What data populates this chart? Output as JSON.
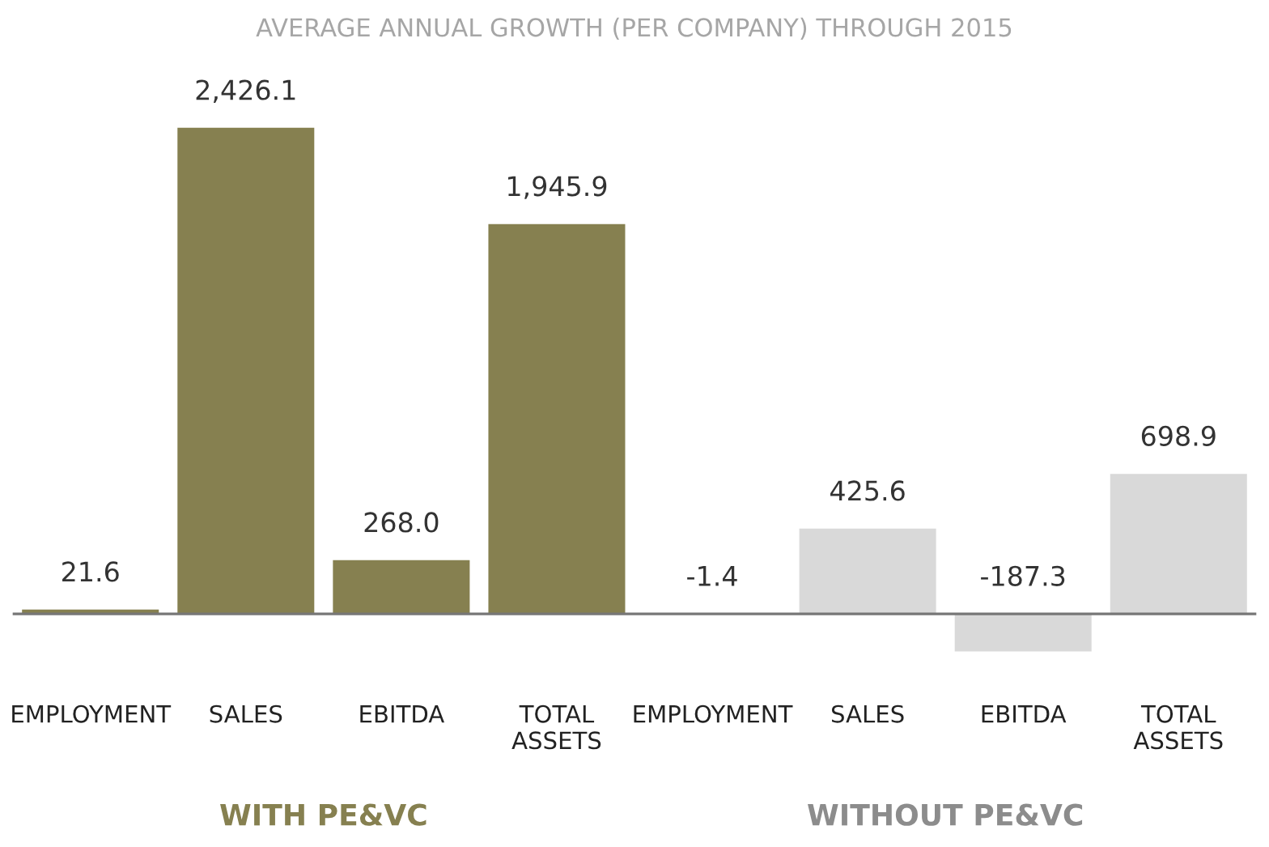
{
  "chart_data": {
    "type": "bar",
    "title": "AVERAGE ANNUAL GROWTH (PER COMPANY) THROUGH 2015",
    "categories": [
      "EMPLOYMENT",
      "SALES",
      "EBITDA",
      "TOTAL\nASSETS",
      "EMPLOYMENT",
      "SALES",
      "EBITDA",
      "TOTAL\nASSETS"
    ],
    "values": [
      21.6,
      2426.1,
      268.0,
      1945.9,
      -1.4,
      425.6,
      -187.3,
      698.9
    ],
    "value_labels": [
      "21.6",
      "2,426.1",
      "268.0",
      "1,945.9",
      "-1.4",
      "425.6",
      "-187.3",
      "698.9"
    ],
    "colors": [
      "#868050",
      "#868050",
      "#868050",
      "#868050",
      "#d9d9d9",
      "#d9d9d9",
      "#d9d9d9",
      "#d9d9d9"
    ],
    "annotations": [
      "WITH PE&VC",
      "WITHOUT PE&VC"
    ],
    "grid": false,
    "legend": false
  }
}
